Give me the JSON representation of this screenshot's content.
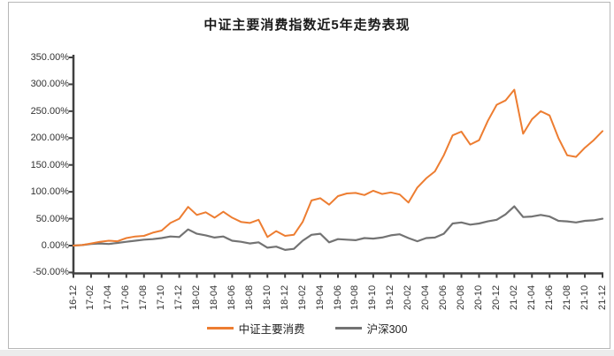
{
  "chart_data": {
    "type": "line",
    "title": "中证主要消费指数近5年走势表现",
    "xlabel": "",
    "ylabel": "",
    "unit": "percent",
    "ylim": [
      -50,
      350
    ],
    "y_major_step": 50,
    "grid": false,
    "legend_position": "bottom",
    "axis_color": "#404040",
    "y_tick_labels": [
      "350.00%",
      "300.00%",
      "250.00%",
      "200.00%",
      "150.00%",
      "100.00%",
      "50.00%",
      "0.00%",
      "-50.00%"
    ],
    "x_tick_labels": [
      "16-12",
      "17-02",
      "17-04",
      "17-06",
      "17-08",
      "17-10",
      "17-12",
      "18-02",
      "18-04",
      "18-06",
      "18-08",
      "18-10",
      "18-12",
      "19-02",
      "19-04",
      "19-06",
      "19-08",
      "19-10",
      "19-12",
      "20-02",
      "20-04",
      "20-06",
      "20-08",
      "20-10",
      "20-12",
      "21-02",
      "21-04",
      "21-06",
      "21-08",
      "21-10",
      "21-12"
    ],
    "x_note": "data sampled monthly from 16-12 to 21-12, labels shown every 2 months",
    "series": [
      {
        "name": "中证主要消费",
        "color": "#ED7D31",
        "values": [
          0,
          1,
          4,
          7,
          9,
          8,
          14,
          17,
          18,
          24,
          28,
          42,
          50,
          72,
          57,
          62,
          52,
          63,
          52,
          44,
          42,
          48,
          16,
          27,
          18,
          20,
          44,
          84,
          88,
          76,
          92,
          97,
          98,
          94,
          102,
          96,
          99,
          95,
          80,
          108,
          125,
          138,
          168,
          205,
          212,
          188,
          196,
          232,
          262,
          270,
          290,
          208,
          235,
          250,
          242,
          200,
          168,
          165,
          182,
          196,
          213
        ]
      },
      {
        "name": "沪深300",
        "color": "#737373",
        "values": [
          0,
          1,
          3,
          4,
          3,
          5,
          7,
          9,
          11,
          12,
          14,
          17,
          16,
          30,
          22,
          19,
          15,
          17,
          9,
          7,
          4,
          6,
          -4,
          -2,
          -8,
          -6,
          9,
          20,
          22,
          6,
          12,
          11,
          10,
          14,
          13,
          15,
          19,
          21,
          14,
          8,
          14,
          15,
          22,
          41,
          43,
          39,
          41,
          45,
          48,
          58,
          73,
          53,
          54,
          57,
          54,
          46,
          45,
          43,
          46,
          47,
          50
        ]
      }
    ]
  }
}
